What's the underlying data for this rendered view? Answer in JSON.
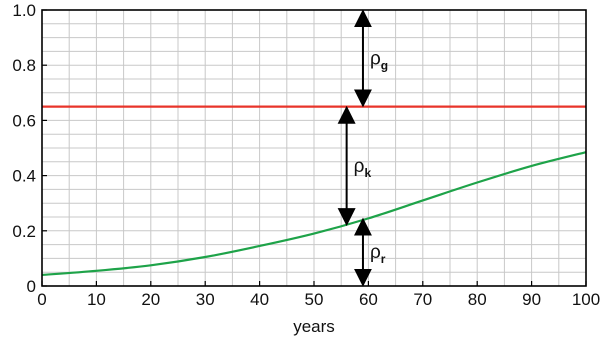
{
  "chart_data": {
    "type": "line",
    "title": "",
    "xlabel": "years",
    "ylabel": "",
    "xlim": [
      0,
      100
    ],
    "ylim": [
      0,
      1.0
    ],
    "grid": true,
    "xticks": [
      0,
      10,
      20,
      30,
      40,
      50,
      60,
      70,
      80,
      90,
      100
    ],
    "yticks": [
      0,
      0.2,
      0.4,
      0.6,
      0.8,
      1.0
    ],
    "xtick_labels": [
      "0",
      "10",
      "20",
      "30",
      "40",
      "50",
      "60",
      "70",
      "80",
      "90",
      "100"
    ],
    "ytick_labels": [
      "0",
      "0.2",
      "0.4",
      "0.6",
      "0.8",
      "1.0"
    ],
    "series": [
      {
        "color": "#e8342a",
        "x": [
          0,
          100
        ],
        "y": [
          0.65,
          0.65
        ]
      },
      {
        "color": "#1ea349",
        "x": [
          0,
          10,
          20,
          30,
          40,
          50,
          60,
          70,
          80,
          90,
          100
        ],
        "y": [
          0.04,
          0.055,
          0.075,
          0.105,
          0.145,
          0.19,
          0.245,
          0.31,
          0.375,
          0.435,
          0.485
        ]
      }
    ],
    "annotations": [
      {
        "label": "ρ",
        "subscript": "g",
        "x": 59,
        "y_from": 0.65,
        "y_to": 1.0
      },
      {
        "label": "ρ",
        "subscript": "k",
        "x": 56,
        "y_from": 0.22,
        "y_to": 0.65
      },
      {
        "label": "ρ",
        "subscript": "r",
        "x": 59,
        "y_from": 0,
        "y_to": 0.245
      }
    ]
  }
}
